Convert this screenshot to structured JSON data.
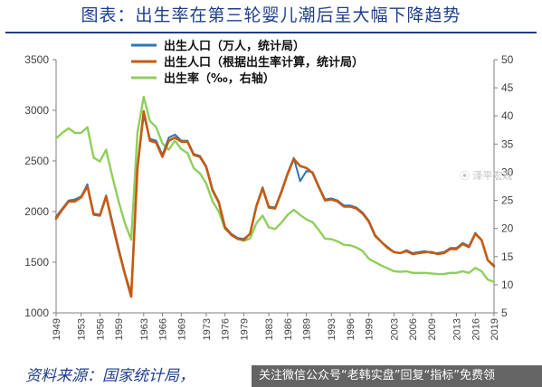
{
  "figure_title": "图表：出生率在第三轮婴儿潮后呈大幅下降趋势",
  "source_text": "资料来源：国家统计局，",
  "watermark_text": "⦿ 泽平宏观",
  "banner_text": "关注微信公众号“老韩实盘”回复“指标”免费领",
  "colors": {
    "title": "#1f3e8a",
    "births_official": "#2e75b6",
    "births_computed": "#c55a11",
    "birth_rate": "#8fce5c",
    "axis": "#7f7f7f"
  },
  "chart_data": {
    "type": "line",
    "x_ticks": [
      1949,
      1953,
      1956,
      1959,
      1963,
      1966,
      1969,
      1973,
      1976,
      1979,
      1983,
      1986,
      1989,
      1993,
      1996,
      1999,
      2003,
      2006,
      2009,
      2013,
      2016,
      2019
    ],
    "y_left": {
      "range": [
        1000,
        3500
      ],
      "ticks": [
        1000,
        1500,
        2000,
        2500,
        3000,
        3500
      ]
    },
    "y_right": {
      "range": [
        5,
        50
      ],
      "ticks": [
        5,
        10,
        15,
        20,
        25,
        30,
        35,
        40,
        45,
        50
      ]
    },
    "legend": [
      "出生人口（万人，统计局）",
      "出生人口（根据出生率计算，统计局）",
      "出生率（‰，右轴）"
    ],
    "legend_position": "top",
    "series": [
      {
        "name": "出生人口（万人，统计局）",
        "axis": "left",
        "x": [
          1949,
          1950,
          1951,
          1952,
          1953,
          1954,
          1955,
          1956,
          1957,
          1958,
          1959,
          1960,
          1961,
          1962,
          1963,
          1964,
          1965,
          1966,
          1967,
          1968,
          1969,
          1970,
          1971,
          1972,
          1973,
          1974,
          1975,
          1976,
          1977,
          1978,
          1979,
          1980,
          1981,
          1982,
          1983,
          1984,
          1985,
          1986,
          1987,
          1988,
          1989,
          1990,
          1991,
          1992,
          1993,
          1994,
          1995,
          1996,
          1997,
          1998,
          1999,
          2000,
          2001,
          2002,
          2003,
          2004,
          2005,
          2006,
          2007,
          2008,
          2009,
          2010,
          2011,
          2012,
          2013,
          2014,
          2015,
          2016,
          2017,
          2018,
          2019
        ],
        "values": [
          1950,
          2030,
          2110,
          2120,
          2150,
          2270,
          1980,
          1970,
          2160,
          1900,
          1640,
          1390,
          1190,
          2450,
          2950,
          2720,
          2700,
          2560,
          2730,
          2760,
          2700,
          2700,
          2570,
          2550,
          2450,
          2220,
          2100,
          1850,
          1780,
          1740,
          1730,
          1780,
          2060,
          2240,
          2050,
          2040,
          2200,
          2380,
          2530,
          2300,
          2400,
          2390,
          2250,
          2120,
          2130,
          2110,
          2060,
          2060,
          2040,
          1990,
          1910,
          1770,
          1700,
          1650,
          1600,
          1590,
          1620,
          1590,
          1600,
          1610,
          1590,
          1590,
          1600,
          1640,
          1640,
          1690,
          1660,
          1790,
          1720,
          1520,
          1470
        ]
      },
      {
        "name": "出生人口（根据出生率计算，统计局）",
        "axis": "left",
        "x": [
          1949,
          1950,
          1951,
          1952,
          1953,
          1954,
          1955,
          1956,
          1957,
          1958,
          1959,
          1960,
          1961,
          1962,
          1963,
          1964,
          1965,
          1966,
          1967,
          1968,
          1969,
          1970,
          1971,
          1972,
          1973,
          1974,
          1975,
          1976,
          1977,
          1978,
          1979,
          1980,
          1981,
          1982,
          1983,
          1984,
          1985,
          1986,
          1987,
          1988,
          1989,
          1990,
          1991,
          1992,
          1993,
          1994,
          1995,
          1996,
          1997,
          1998,
          1999,
          2000,
          2001,
          2002,
          2003,
          2004,
          2005,
          2006,
          2007,
          2008,
          2009,
          2010,
          2011,
          2012,
          2013,
          2014,
          2015,
          2016,
          2017,
          2018,
          2019
        ],
        "values": [
          1930,
          2020,
          2100,
          2100,
          2140,
          2250,
          1970,
          1960,
          2150,
          1880,
          1620,
          1380,
          1160,
          2430,
          2990,
          2700,
          2680,
          2540,
          2700,
          2730,
          2690,
          2690,
          2560,
          2540,
          2440,
          2210,
          2090,
          1840,
          1770,
          1730,
          1720,
          1780,
          2050,
          2230,
          2040,
          2030,
          2190,
          2370,
          2520,
          2450,
          2430,
          2380,
          2240,
          2110,
          2120,
          2100,
          2050,
          2050,
          2030,
          1980,
          1900,
          1760,
          1700,
          1640,
          1600,
          1590,
          1610,
          1580,
          1590,
          1600,
          1600,
          1580,
          1590,
          1630,
          1630,
          1680,
          1650,
          1780,
          1720,
          1520,
          1460
        ]
      },
      {
        "name": "出生率（‰，右轴）",
        "axis": "right",
        "x": [
          1949,
          1950,
          1951,
          1952,
          1953,
          1954,
          1955,
          1956,
          1957,
          1958,
          1959,
          1960,
          1961,
          1962,
          1963,
          1964,
          1965,
          1966,
          1967,
          1968,
          1969,
          1970,
          1971,
          1972,
          1973,
          1974,
          1975,
          1976,
          1977,
          1978,
          1979,
          1980,
          1981,
          1982,
          1983,
          1984,
          1985,
          1986,
          1987,
          1988,
          1989,
          1990,
          1991,
          1992,
          1993,
          1994,
          1995,
          1996,
          1997,
          1998,
          1999,
          2000,
          2001,
          2002,
          2003,
          2004,
          2005,
          2006,
          2007,
          2008,
          2009,
          2010,
          2011,
          2012,
          2013,
          2014,
          2015,
          2016,
          2017,
          2018,
          2019
        ],
        "values": [
          36.0,
          37.0,
          37.8,
          37.0,
          37.0,
          38.0,
          32.6,
          31.9,
          34.0,
          29.2,
          24.8,
          20.9,
          18.0,
          37.0,
          43.4,
          39.1,
          38.0,
          35.1,
          34.0,
          35.6,
          34.1,
          33.4,
          30.7,
          29.8,
          28.0,
          24.8,
          23.0,
          19.9,
          19.0,
          18.3,
          17.8,
          18.2,
          20.9,
          22.3,
          20.2,
          19.9,
          21.0,
          22.4,
          23.3,
          22.4,
          21.6,
          21.1,
          19.7,
          18.2,
          18.1,
          17.7,
          17.1,
          17.0,
          16.6,
          16.0,
          14.6,
          14.0,
          13.4,
          12.9,
          12.4,
          12.3,
          12.4,
          12.1,
          12.1,
          12.1,
          12.0,
          11.9,
          11.9,
          12.1,
          12.1,
          12.4,
          12.1,
          13.0,
          12.4,
          10.9,
          10.5
        ]
      }
    ]
  }
}
